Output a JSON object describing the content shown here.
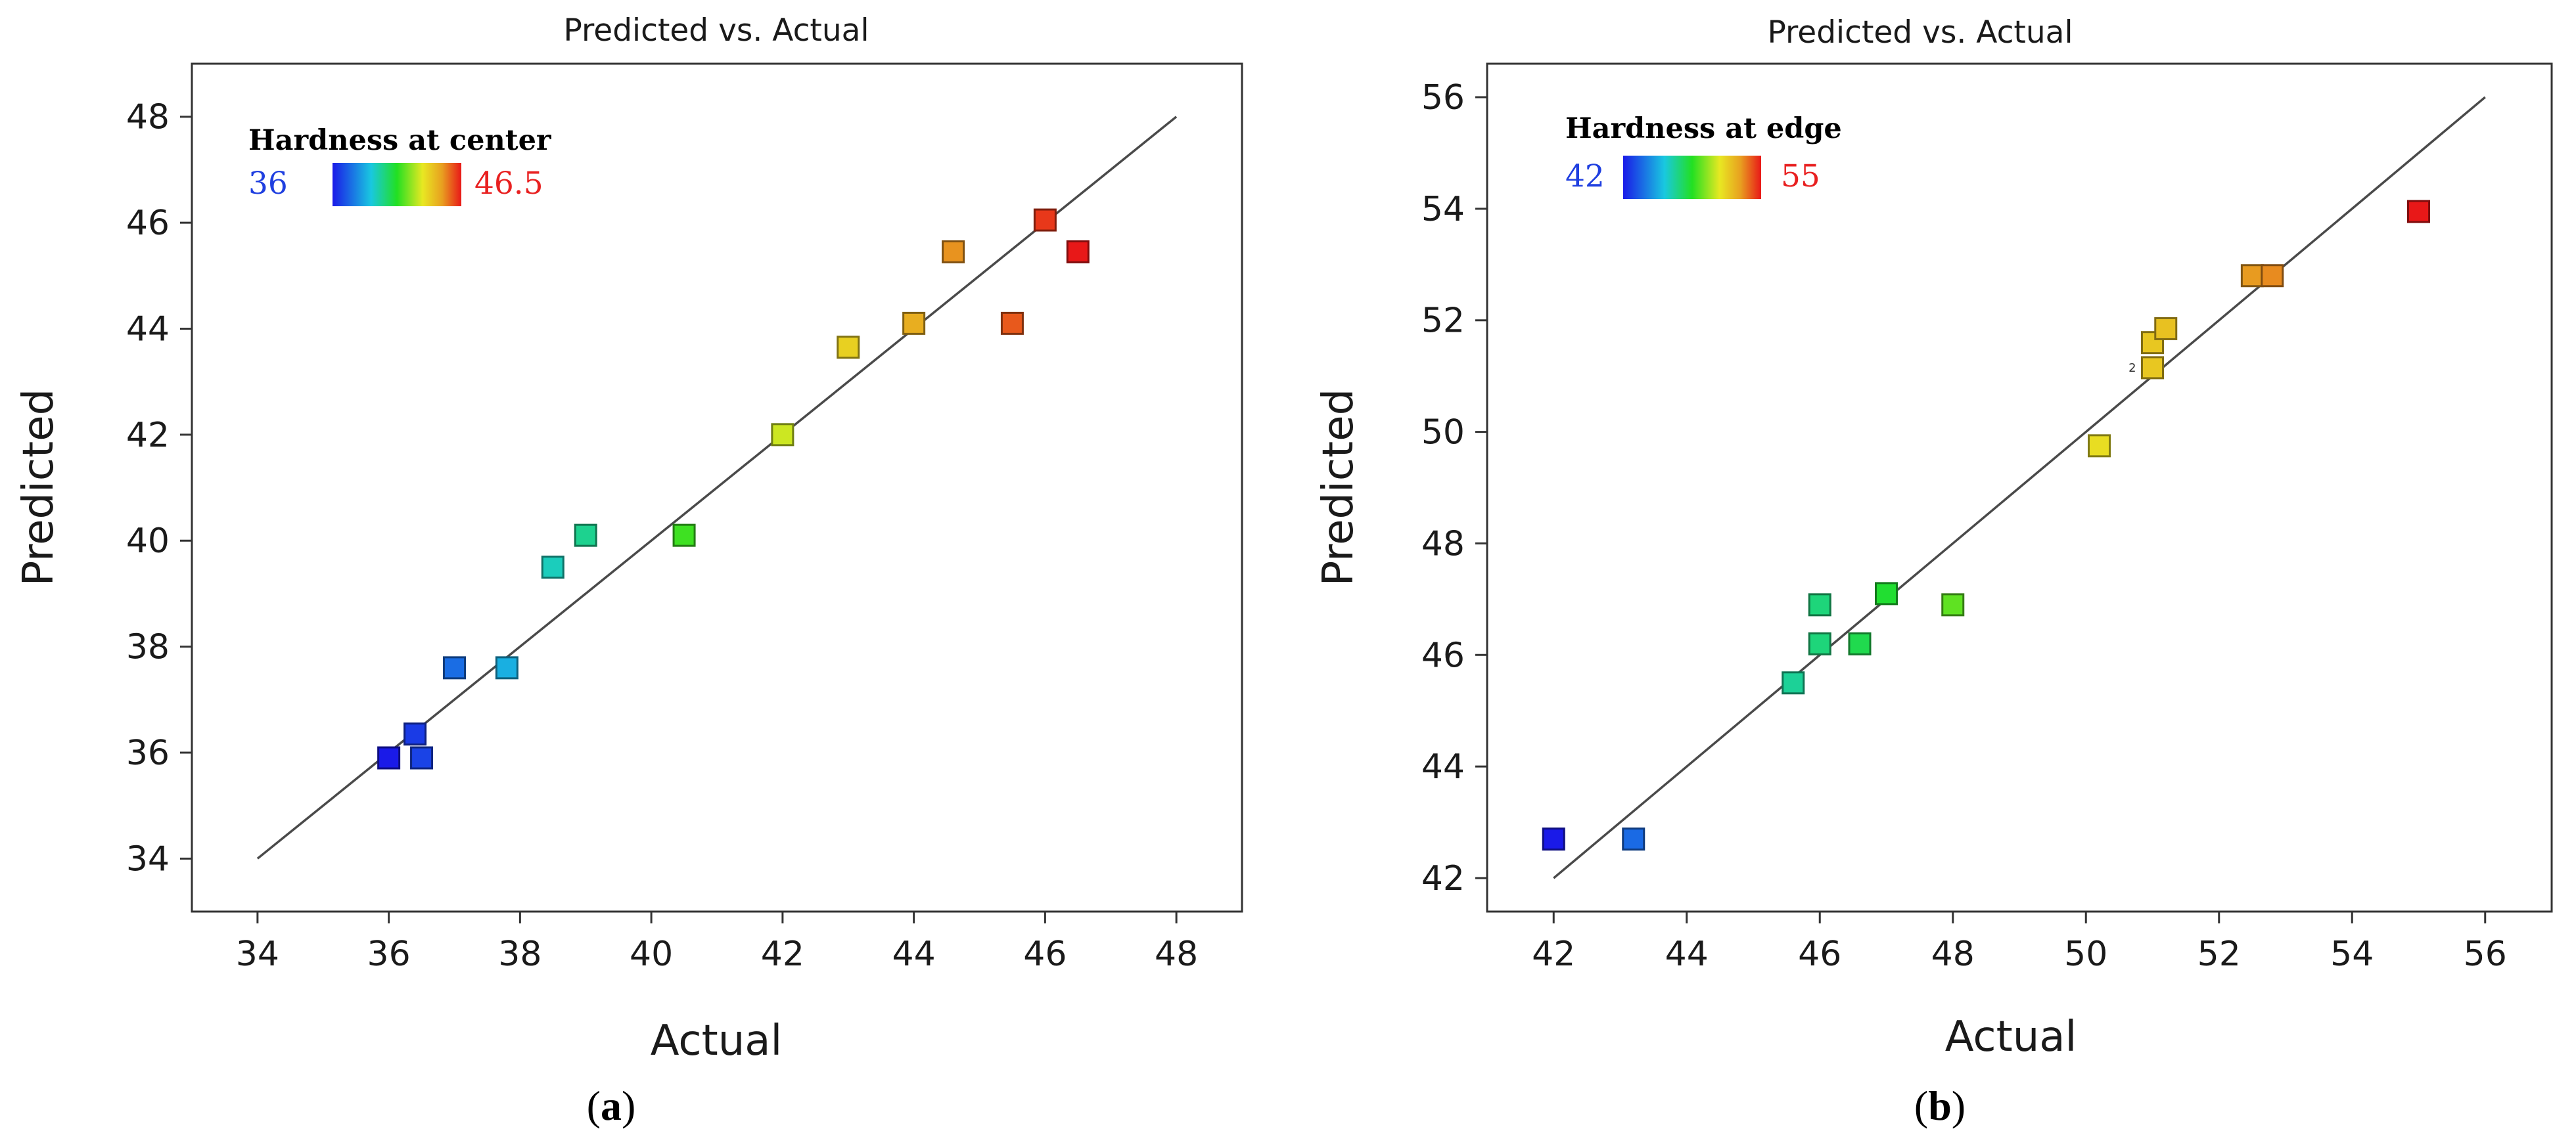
{
  "chart_data": [
    {
      "type": "scatter",
      "title": "Predicted vs. Actual",
      "xlabel": "Actual",
      "ylabel": "Predicted",
      "xlim": [
        33,
        49
      ],
      "ylim": [
        33,
        49
      ],
      "xticks": [
        34,
        36,
        38,
        40,
        42,
        44,
        46,
        48
      ],
      "yticks": [
        34,
        36,
        38,
        40,
        42,
        44,
        46,
        48
      ],
      "reference_line": [
        34,
        48
      ],
      "legend": {
        "title": "Hardness at center",
        "min_label": "36",
        "max_label": "46.5",
        "min": 36,
        "max": 46.5,
        "placement": "top-left"
      },
      "panel_label": "a",
      "points": [
        {
          "x": 36.0,
          "y": 35.9
        },
        {
          "x": 36.5,
          "y": 35.9
        },
        {
          "x": 36.4,
          "y": 36.35
        },
        {
          "x": 37.0,
          "y": 37.6
        },
        {
          "x": 37.8,
          "y": 37.6
        },
        {
          "x": 38.5,
          "y": 39.5
        },
        {
          "x": 39.0,
          "y": 40.1
        },
        {
          "x": 40.5,
          "y": 40.1
        },
        {
          "x": 42.0,
          "y": 42.0
        },
        {
          "x": 43.0,
          "y": 43.65
        },
        {
          "x": 44.0,
          "y": 44.1
        },
        {
          "x": 44.6,
          "y": 45.45
        },
        {
          "x": 45.5,
          "y": 44.1
        },
        {
          "x": 46.0,
          "y": 46.05
        },
        {
          "x": 46.5,
          "y": 45.45
        }
      ]
    },
    {
      "type": "scatter",
      "title": "Predicted vs. Actual",
      "xlabel": "Actual",
      "ylabel": "Predicted",
      "xlim": [
        41,
        57
      ],
      "ylim": [
        41.4,
        56.6
      ],
      "xticks": [
        42,
        44,
        46,
        48,
        50,
        52,
        54,
        56
      ],
      "yticks": [
        42,
        44,
        46,
        48,
        50,
        52,
        54,
        56
      ],
      "reference_line": [
        42,
        56
      ],
      "legend": {
        "title": "Hardness at edge",
        "min_label": "42",
        "max_label": "55",
        "min": 42,
        "max": 55,
        "placement": "top-left"
      },
      "panel_label": "b",
      "annotation": {
        "text": "2",
        "x": 50.7,
        "y": 51.15
      },
      "points": [
        {
          "x": 42.0,
          "y": 42.7
        },
        {
          "x": 43.2,
          "y": 42.7
        },
        {
          "x": 45.6,
          "y": 45.5
        },
        {
          "x": 46.0,
          "y": 46.2
        },
        {
          "x": 46.0,
          "y": 46.9
        },
        {
          "x": 46.6,
          "y": 46.2
        },
        {
          "x": 47.0,
          "y": 47.1
        },
        {
          "x": 48.0,
          "y": 46.9
        },
        {
          "x": 50.2,
          "y": 49.75
        },
        {
          "x": 51.0,
          "y": 51.15
        },
        {
          "x": 51.0,
          "y": 51.6
        },
        {
          "x": 51.2,
          "y": 51.85
        },
        {
          "x": 52.5,
          "y": 52.8
        },
        {
          "x": 52.8,
          "y": 52.8
        },
        {
          "x": 55.0,
          "y": 53.95
        }
      ]
    }
  ],
  "colors": {
    "gradient": [
      "#1a1ae8",
      "#19c8e0",
      "#22e022",
      "#e8e822",
      "#e8a020",
      "#e81818"
    ],
    "reference_line": "#4a4a4a",
    "axis": "#333333"
  }
}
